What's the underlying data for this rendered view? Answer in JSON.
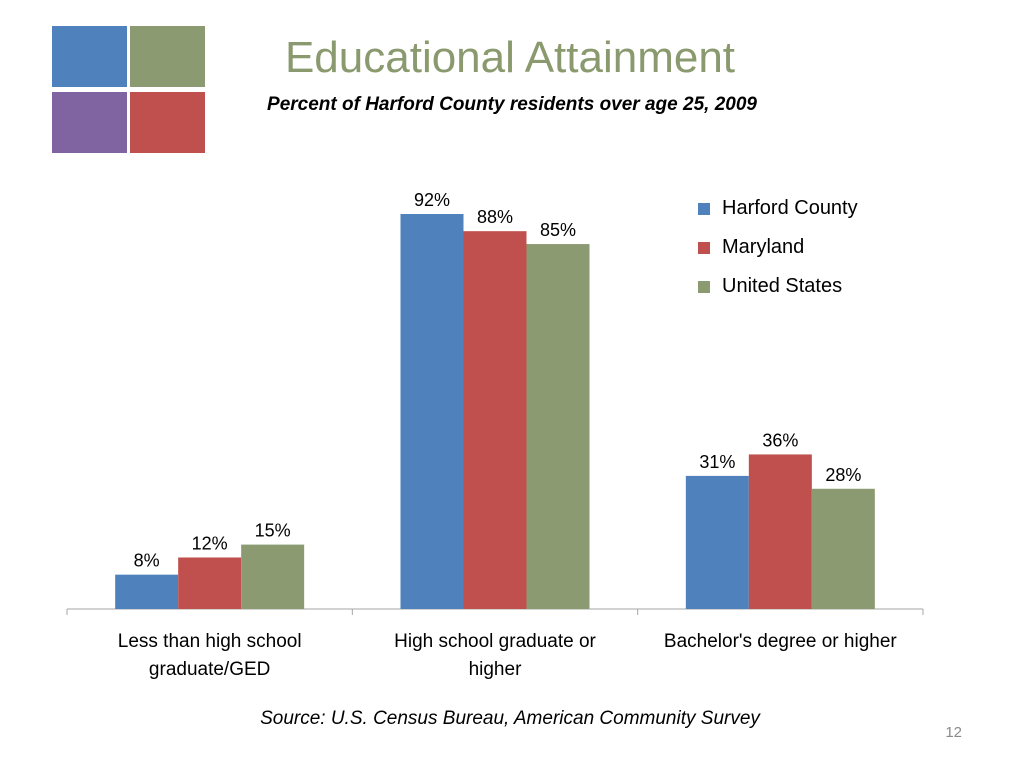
{
  "slide": {
    "title": "Educational Attainment",
    "subtitle": "Percent of Harford County residents over age 25, 2009",
    "source": "Source: U.S. Census Bureau, American Community Survey",
    "page_number": "12",
    "title_color": "#8a9a6e",
    "logo_colors": [
      "#4f81bd",
      "#8c9a72",
      "#8064a2",
      "#c0504d"
    ]
  },
  "chart_data": {
    "type": "bar",
    "title": "",
    "xlabel": "",
    "ylabel": "",
    "categories": [
      "Less than high school graduate/GED",
      "High school graduate or higher",
      "Bachelor's degree or higher"
    ],
    "category_lines": [
      [
        "Less than high school",
        "graduate/GED"
      ],
      [
        "High school graduate or",
        "higher"
      ],
      [
        "Bachelor's degree or higher"
      ]
    ],
    "series": [
      {
        "name": "Harford County",
        "values": [
          8,
          92,
          31
        ],
        "labels": [
          "8%",
          "92%",
          "31%"
        ],
        "color": "#4f81bd"
      },
      {
        "name": "Maryland",
        "values": [
          12,
          88,
          36
        ],
        "labels": [
          "12%",
          "88%",
          "36%"
        ],
        "color": "#c0504d"
      },
      {
        "name": "United States",
        "values": [
          15,
          85,
          28
        ],
        "labels": [
          "15%",
          "85%",
          "28%"
        ],
        "color": "#8c9a72"
      }
    ],
    "ylim": [
      0,
      92
    ],
    "grid": false,
    "legend_position": "top-right",
    "axis_color": "#a6a6a6"
  }
}
